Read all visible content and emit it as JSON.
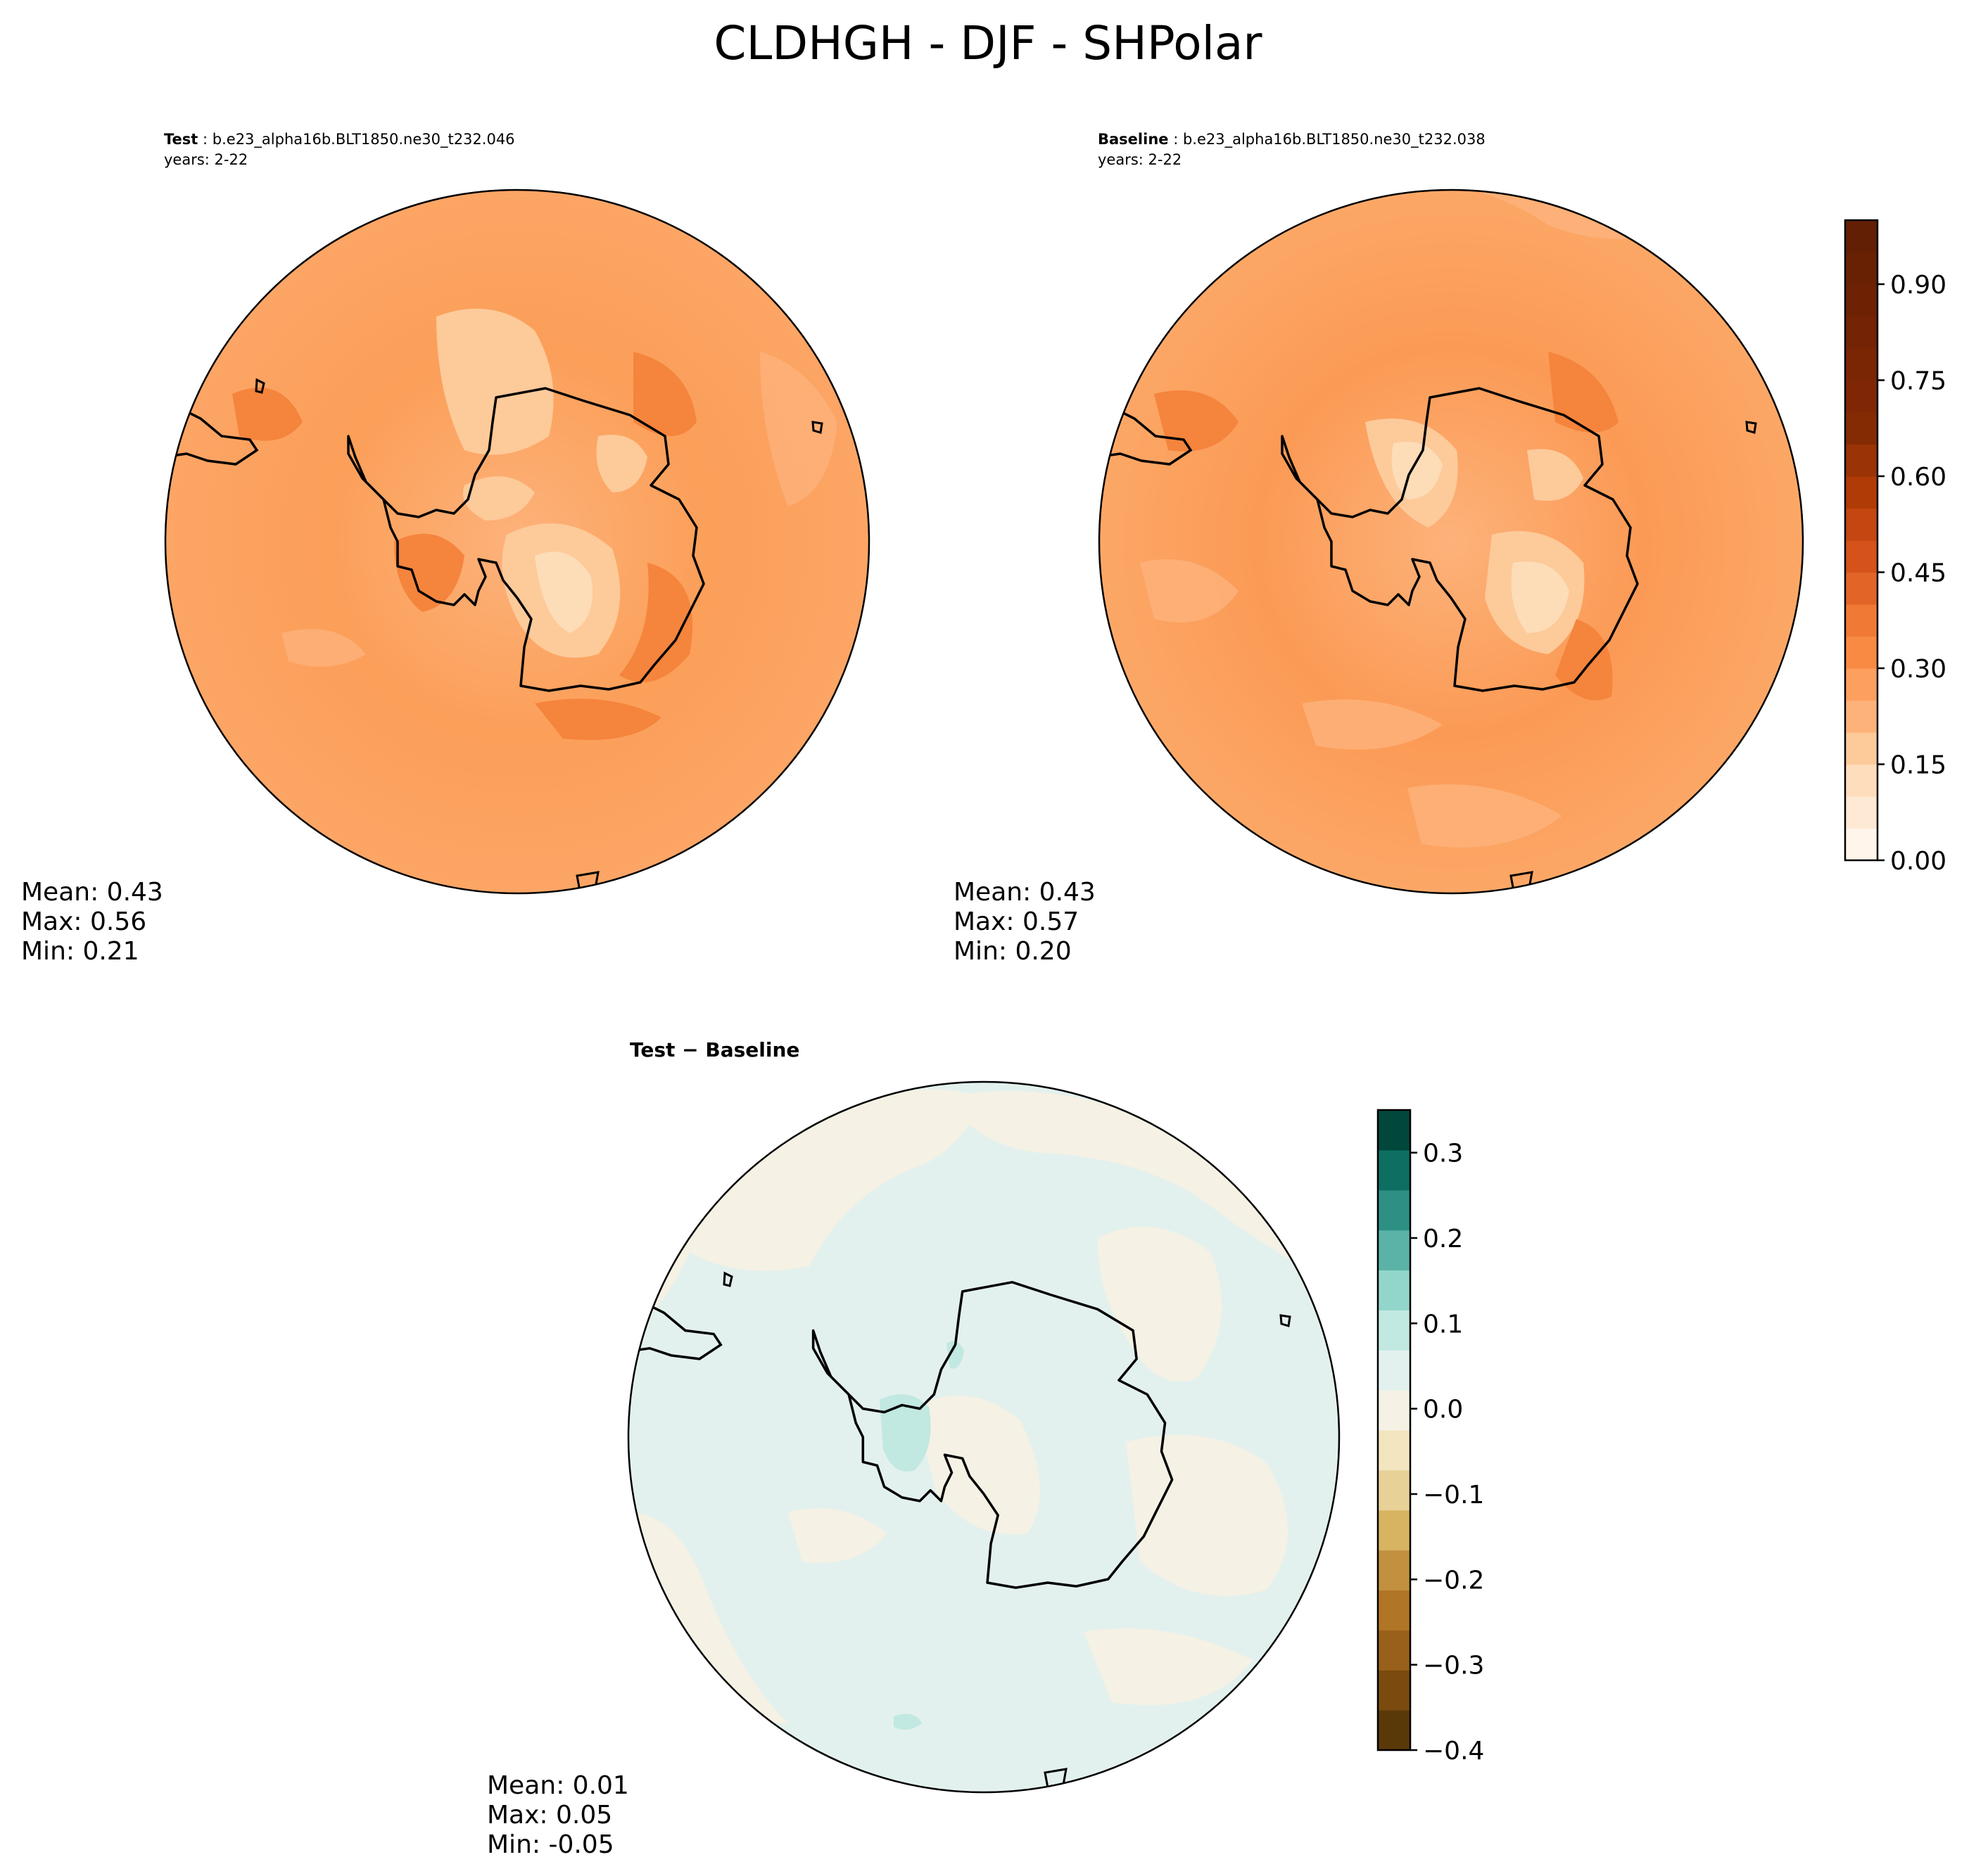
{
  "figure_title": "CLDHGH - DJF - SHPolar",
  "panels": [
    {
      "label": "Test",
      "case": "b.e23_alpha16b.BLT1850.ne30_t232.046",
      "years": "years: 2-22",
      "stats": [
        "Mean:  0.43",
        "Max:  0.56",
        "Min:  0.21"
      ]
    },
    {
      "label": "Baseline",
      "case": "b.e23_alpha16b.BLT1850.ne30_t232.038",
      "years": "years: 2-22",
      "stats": [
        "Mean:  0.43",
        "Max:  0.57",
        "Min:  0.20"
      ]
    },
    {
      "label": "Test − Baseline",
      "stats": [
        "Mean:  0.01",
        "Max:  0.05",
        "Min: -0.05"
      ]
    }
  ],
  "colorbar_main": {
    "ticks": [
      "0.00",
      "0.15",
      "0.30",
      "0.45",
      "0.60",
      "0.75",
      "0.90"
    ],
    "levels": 20,
    "range": [
      0,
      1
    ]
  },
  "colorbar_diff": {
    "ticks": [
      "−0.4",
      "−0.3",
      "−0.2",
      "−0.1",
      "0.0",
      "0.1",
      "0.2",
      "0.3"
    ],
    "levels": 16,
    "range": [
      -0.4,
      0.35
    ]
  },
  "colors": {
    "oranges": [
      "#fff5eb",
      "#fee9d4",
      "#fdddbb",
      "#fdca9a",
      "#fdb27a",
      "#fd9f5e",
      "#f98a43",
      "#f07a35",
      "#e26427",
      "#d5521a",
      "#c44711",
      "#b03b06",
      "#9a3305",
      "#852b04",
      "#7f2704",
      "#7a2504",
      "#742404",
      "#6e2204",
      "#692104",
      "#631f04"
    ],
    "diff": [
      "#5a3909",
      "#7a4a0e",
      "#98601a",
      "#b07525",
      "#c2913f",
      "#d7b461",
      "#e8d197",
      "#f3e5bf",
      "#f5f1e4",
      "#e2f1ee",
      "#c1e8e1",
      "#92d6cb",
      "#5bb3a7",
      "#2e8f84",
      "#0e6e62",
      "#01473b"
    ],
    "map_base_left": "#fb9f59",
    "map_base_right": "#fb9a55",
    "diff_base": "#e3f1ee",
    "diff_neg": "#f5f1e4",
    "diff_pos": "#c1e8e1"
  }
}
